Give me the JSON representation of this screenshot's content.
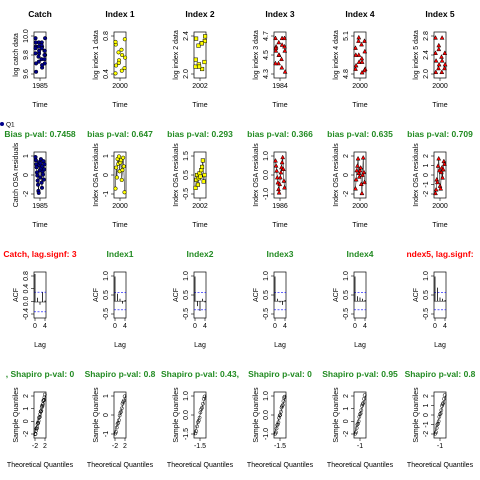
{
  "legend": {
    "label": "Q1"
  },
  "colors": {
    "catch": "#00008b",
    "index1": "#ffff00",
    "index2": "#ffff00",
    "index3": "#ff0000",
    "index4": "#ff0000",
    "index5": "#ff0000",
    "title_green": "#228b22",
    "title_red": "#ff0000",
    "acf_line": "#0000ff"
  },
  "row1": [
    {
      "title": "Catch",
      "ylabel": "log catch data",
      "xlabel": "Time",
      "yticks": [
        "9.6",
        "9.8",
        "10.0"
      ],
      "xticks": [
        "1985"
      ],
      "marker": "circle",
      "color_key": "catch"
    },
    {
      "title": "Index 1",
      "ylabel": "log index 1 data",
      "xlabel": "Time",
      "yticks": [
        "0.4",
        "0.8"
      ],
      "xticks": [
        "2000"
      ],
      "marker": "circle",
      "color_key": "index1"
    },
    {
      "title": "Index 2",
      "ylabel": "log index 2 data",
      "xlabel": "Time",
      "yticks": [
        "2.0",
        "2.4"
      ],
      "xticks": [
        "2002"
      ],
      "marker": "square",
      "color_key": "index2"
    },
    {
      "title": "Index 3",
      "ylabel": "log index 3 data",
      "xlabel": "Time",
      "yticks": [
        "4.3",
        "4.5",
        "4.7"
      ],
      "xticks": [
        "1984"
      ],
      "marker": "triangle",
      "color_key": "index3"
    },
    {
      "title": "Index 4",
      "ylabel": "log index 4 data",
      "xlabel": "Time",
      "yticks": [
        "4.8",
        "5.1"
      ],
      "xticks": [
        "2000"
      ],
      "marker": "triangle",
      "color_key": "index4"
    },
    {
      "title": "Index 5",
      "ylabel": "log index 5 data",
      "xlabel": "Time",
      "yticks": [
        "2.0",
        "2.4",
        "2.8"
      ],
      "xticks": [
        "2000"
      ],
      "marker": "triangle",
      "color_key": "index5"
    }
  ],
  "row2": [
    {
      "title": "Bias p-val: 0.7458",
      "ylabel": "Catch OSA residuals",
      "xlabel": "Time",
      "yticks": [
        "-2",
        "0",
        "1"
      ],
      "xticks": [
        "1985"
      ],
      "marker": "circle",
      "color_key": "catch"
    },
    {
      "title": "bias p-val: 0.647",
      "ylabel": "Index OSA residuals",
      "xlabel": "Time",
      "yticks": [
        "-1",
        "0",
        "1"
      ],
      "xticks": [
        "2000"
      ],
      "marker": "circle",
      "color_key": "index1"
    },
    {
      "title": "bias p-val: 0.293",
      "ylabel": "Index OSA residuals",
      "xlabel": "Time",
      "yticks": [
        "-0.5",
        "0.5",
        "1.5"
      ],
      "xticks": [
        "2002"
      ],
      "marker": "square",
      "color_key": "index2"
    },
    {
      "title": "bias p-val: 0.366",
      "ylabel": "Index OSA residuals",
      "xlabel": "Time",
      "yticks": [
        "-1.0",
        "0.0",
        "1.0"
      ],
      "xticks": [
        "1986"
      ],
      "marker": "triangle",
      "color_key": "index3"
    },
    {
      "title": "bias p-val: 0.635",
      "ylabel": "Index OSA residuals",
      "xlabel": "Time",
      "yticks": [
        "-2",
        "0",
        "2"
      ],
      "xticks": [
        "2000"
      ],
      "marker": "triangle",
      "color_key": "index4"
    },
    {
      "title": "bias p-val: 0.709",
      "ylabel": "Index OSA residuals",
      "xlabel": "Time",
      "yticks": [
        "-2",
        "-1",
        "0",
        "1",
        "2"
      ],
      "xticks": [
        "2000"
      ],
      "marker": "triangle",
      "color_key": "index5"
    }
  ],
  "row3": [
    {
      "title": "Catch, lag.signf: 3",
      "title_color": "title_red",
      "ylabel": "ACF",
      "xlabel": "Lag",
      "yticks": [
        "-0.4",
        "0.0",
        "0.4",
        "0.8"
      ],
      "xticks": [
        "0",
        "4"
      ],
      "acf": [
        1.0,
        0.15,
        -0.1,
        0.35,
        0.05
      ]
    },
    {
      "title": "Index1",
      "title_color": "title_green",
      "ylabel": "ACF",
      "xlabel": "Lag",
      "yticks": [
        "-0.5",
        "0.5",
        "1.0"
      ],
      "xticks": [
        "0",
        "4"
      ],
      "acf": [
        1.0,
        0.3,
        0.1,
        -0.1,
        0.05
      ]
    },
    {
      "title": "Index2",
      "title_color": "title_green",
      "ylabel": "ACF",
      "xlabel": "Lag",
      "yticks": [
        "-0.5",
        "0.5",
        "1.0"
      ],
      "xticks": [
        "0",
        "4"
      ],
      "acf": [
        1.0,
        -0.2,
        -0.4,
        0.1,
        -0.05
      ]
    },
    {
      "title": "Index3",
      "title_color": "title_green",
      "ylabel": "ACF",
      "xlabel": "Lag",
      "yticks": [
        "-0.5",
        "0.5",
        "1.0"
      ],
      "xticks": [
        "0",
        "4"
      ],
      "acf": [
        1.0,
        0.1,
        -0.05,
        -0.15,
        0.05
      ]
    },
    {
      "title": "Index4",
      "title_color": "title_green",
      "ylabel": "ACF",
      "xlabel": "Lag",
      "yticks": [
        "-0.5",
        "0.5",
        "1.0"
      ],
      "xticks": [
        "0",
        "4"
      ],
      "acf": [
        1.0,
        0.2,
        0.15,
        0.1,
        0.05
      ]
    },
    {
      "title": "ndex5, lag.signf: ",
      "title_color": "title_red",
      "ylabel": "ACF",
      "xlabel": "Lag",
      "yticks": [
        "-0.5",
        "0.5",
        "1.0"
      ],
      "xticks": [
        "0",
        "4"
      ],
      "acf": [
        1.0,
        0.55,
        0.15,
        0.1,
        0.05
      ]
    }
  ],
  "row4": [
    {
      "title": ", Shapiro p-val: 0",
      "ylabel": "Sample Quantiles",
      "xlabel": "Theoretical Quantiles",
      "yticks": [
        "-2",
        "0",
        "1",
        "2"
      ],
      "xticks": [
        "-2",
        "2"
      ],
      "ylim": [
        -2.5,
        1.5
      ]
    },
    {
      "title": "Shapiro p-val: 0.8",
      "ylabel": "Sample Quantiles",
      "xlabel": "Theoretical Quantiles",
      "yticks": [
        "-1",
        "0",
        "1"
      ],
      "xticks": [
        "-2",
        "2"
      ],
      "ylim": [
        -1.6,
        1.8
      ]
    },
    {
      "title": "Shapiro p-val: 0.43,",
      "ylabel": "Sample Quantiles",
      "xlabel": "Theoretical Quantiles",
      "yticks": [
        "-1.5",
        "0.0",
        "1.0"
      ],
      "xticks": [
        "-1.5"
      ],
      "ylim": [
        -1.6,
        1.6
      ]
    },
    {
      "title": "Shapiro p-val: 0",
      "ylabel": "Sample Quantiles",
      "xlabel": "Theoretical Quantiles",
      "yticks": [
        "-1.0",
        "0.0",
        "1.0"
      ],
      "xticks": [
        "-1.5"
      ],
      "ylim": [
        -1.4,
        1.2
      ]
    },
    {
      "title": "Shapiro p-val: 0.95",
      "ylabel": "Sample Quantiles",
      "xlabel": "Theoretical Quantiles",
      "yticks": [
        "-2",
        "0",
        "1",
        "2"
      ],
      "xticks": [
        "-1"
      ],
      "ylim": [
        -2.3,
        2.3
      ]
    },
    {
      "title": "Shapiro p-val: 0.8",
      "ylabel": "Sample Quantiles",
      "xlabel": "Theoretical Quantiles",
      "yticks": [
        "-2",
        "-1",
        "0",
        "1",
        "2"
      ],
      "xticks": [
        "-1"
      ],
      "ylim": [
        -2.3,
        2.3
      ]
    }
  ],
  "chart_data": [
    {
      "type": "scatter",
      "title": "Catch",
      "xlabel": "Time",
      "ylabel": "log catch data",
      "ylim": [
        9.55,
        10.05
      ],
      "y": [
        10.0,
        9.95,
        9.9,
        9.85,
        9.9,
        9.82,
        9.75,
        9.85,
        9.7,
        9.9,
        9.95,
        9.8,
        9.88,
        9.72,
        9.65,
        9.8,
        9.95,
        9.85,
        9.92,
        9.7,
        9.6,
        9.78,
        9.88,
        10.0,
        9.82,
        9.9,
        9.68,
        9.75
      ]
    },
    {
      "type": "scatter",
      "title": "Index 1",
      "xlabel": "Time",
      "ylabel": "log index 1 data",
      "ylim": [
        0.3,
        1.1
      ],
      "y": [
        0.35,
        0.55,
        0.7,
        0.45,
        0.9,
        0.6,
        0.8,
        1.0,
        0.5,
        0.75,
        0.4,
        0.65,
        0.95,
        0.55
      ]
    },
    {
      "type": "scatter",
      "title": "Index 2",
      "xlabel": "Time",
      "ylabel": "log index 2 data",
      "ylim": [
        1.8,
        2.7
      ],
      "y": [
        2.0,
        2.05,
        1.95,
        2.1,
        2.15,
        2.0,
        2.5,
        2.55,
        2.6,
        2.45,
        2.5,
        2.65
      ]
    },
    {
      "type": "scatter",
      "title": "Index 3",
      "xlabel": "Time",
      "ylabel": "log index 3 data",
      "ylim": [
        4.25,
        4.75
      ],
      "y": [
        4.7,
        4.65,
        4.7,
        4.6,
        4.55,
        4.5,
        4.45,
        4.55,
        4.6,
        4.4,
        4.35,
        4.3,
        4.4,
        4.5,
        4.62,
        4.7,
        4.58
      ]
    },
    {
      "type": "scatter",
      "title": "Index 4",
      "xlabel": "Time",
      "ylabel": "log index 4 data",
      "ylim": [
        4.7,
        5.3
      ],
      "y": [
        4.8,
        5.25,
        4.75,
        5.2,
        5.0,
        4.9,
        5.15,
        5.05,
        4.85,
        5.2,
        4.95,
        4.8,
        5.1,
        5.0,
        4.9,
        4.78
      ]
    },
    {
      "type": "scatter",
      "title": "Index 5",
      "xlabel": "Time",
      "ylabel": "log index 5 data",
      "ylim": [
        1.9,
        3.0
      ],
      "y": [
        2.9,
        2.6,
        2.3,
        2.1,
        2.0,
        2.2,
        2.4,
        2.5,
        2.3,
        2.1,
        2.0,
        2.2,
        2.5,
        2.7,
        2.9
      ]
    },
    {
      "type": "scatter",
      "title": "Bias p-val: 0.7458",
      "xlabel": "Time",
      "ylabel": "Catch OSA residuals",
      "ylim": [
        -2.3,
        1.8
      ],
      "y": [
        1.5,
        1.2,
        0.8,
        0.5,
        0.0,
        -0.3,
        -0.8,
        -1.2,
        -1.8,
        -2.0,
        1.0,
        0.7,
        0.2,
        -0.5,
        0.9,
        1.3,
        0.4,
        -1.0,
        -1.5,
        0.6,
        0.1,
        -0.2,
        1.1,
        -0.7,
        0.3,
        0.8
      ]
    },
    {
      "type": "scatter",
      "title": "bias p-val: 0.647",
      "xlabel": "Time",
      "ylabel": "Index OSA residuals",
      "ylim": [
        -1.8,
        1.6
      ],
      "y": [
        -1.2,
        0.5,
        -0.3,
        1.2,
        0.8,
        1.4,
        0.2,
        0.9,
        1.1,
        -0.5,
        0.3,
        1.3,
        0.6,
        -1.5
      ]
    },
    {
      "type": "scatter",
      "title": "bias p-val: 0.293",
      "xlabel": "Time",
      "ylabel": "Index OSA residuals",
      "ylim": [
        -0.8,
        1.8
      ],
      "y": [
        -0.3,
        0.2,
        0.5,
        -0.1,
        0.3,
        0.6,
        0.4,
        0.8,
        1.0,
        1.4,
        0.1,
        0.5
      ]
    },
    {
      "type": "scatter",
      "title": "bias p-val: 0.366",
      "xlabel": "Time",
      "ylabel": "Index OSA residuals",
      "ylim": [
        -1.3,
        1.2
      ],
      "y": [
        0.8,
        0.5,
        0.2,
        -0.2,
        -0.5,
        -0.9,
        -1.1,
        -0.6,
        -0.2,
        0.1,
        0.4,
        0.7,
        1.0,
        0.3,
        -0.4,
        -0.8
      ]
    },
    {
      "type": "scatter",
      "title": "bias p-val: 0.635",
      "xlabel": "Time",
      "ylabel": "Index OSA residuals",
      "ylim": [
        -2.3,
        2.3
      ],
      "y": [
        -1.5,
        -0.5,
        0.5,
        1.0,
        1.8,
        0.2,
        -0.2,
        0.5,
        0.8,
        -1.0,
        -2.0,
        0.0,
        1.9,
        0.3,
        -0.8
      ]
    },
    {
      "type": "scatter",
      "title": "bias p-val: 0.709",
      "xlabel": "Time",
      "ylabel": "Index OSA residuals",
      "ylim": [
        -2.3,
        2.3
      ],
      "y": [
        -2.0,
        -1.6,
        -0.5,
        -0.8,
        1.0,
        1.8,
        0.5,
        -1.2,
        -1.5,
        0.3,
        0.8,
        -0.3,
        0.6,
        1.5,
        1.2
      ]
    },
    {
      "type": "bar",
      "title": "Catch, lag.signf: 3",
      "xlabel": "Lag",
      "ylabel": "ACF",
      "categories": [
        0,
        1,
        2,
        3,
        4
      ],
      "values": [
        1.0,
        0.15,
        -0.1,
        0.35,
        0.05
      ],
      "ylim": [
        -0.5,
        1.0
      ]
    },
    {
      "type": "bar",
      "title": "Index1",
      "xlabel": "Lag",
      "ylabel": "ACF",
      "categories": [
        0,
        1,
        2,
        3,
        4
      ],
      "values": [
        1.0,
        0.3,
        0.1,
        -0.1,
        0.05
      ],
      "ylim": [
        -0.6,
        1.1
      ]
    },
    {
      "type": "bar",
      "title": "Index2",
      "xlabel": "Lag",
      "ylabel": "ACF",
      "categories": [
        0,
        1,
        2,
        3,
        4
      ],
      "values": [
        1.0,
        -0.2,
        -0.4,
        0.1,
        -0.05
      ],
      "ylim": [
        -0.6,
        1.1
      ]
    },
    {
      "type": "bar",
      "title": "Index3",
      "xlabel": "Lag",
      "ylabel": "ACF",
      "categories": [
        0,
        1,
        2,
        3,
        4
      ],
      "values": [
        1.0,
        0.1,
        -0.05,
        -0.15,
        0.05
      ],
      "ylim": [
        -0.6,
        1.1
      ]
    },
    {
      "type": "bar",
      "title": "Index4",
      "xlabel": "Lag",
      "ylabel": "ACF",
      "categories": [
        0,
        1,
        2,
        3,
        4
      ],
      "values": [
        1.0,
        0.2,
        0.15,
        0.1,
        0.05
      ],
      "ylim": [
        -0.6,
        1.1
      ]
    },
    {
      "type": "bar",
      "title": "ndex5, lag.signf: ",
      "xlabel": "Lag",
      "ylabel": "ACF",
      "categories": [
        0,
        1,
        2,
        3,
        4
      ],
      "values": [
        1.0,
        0.55,
        0.15,
        0.1,
        0.05
      ],
      "ylim": [
        -0.6,
        1.1
      ]
    },
    {
      "type": "scatter",
      "title": ", Shapiro p-val: 0",
      "xlabel": "Theoretical Quantiles",
      "ylabel": "Sample Quantiles",
      "n": 26
    },
    {
      "type": "scatter",
      "title": "Shapiro p-val: 0.8",
      "xlabel": "Theoretical Quantiles",
      "ylabel": "Sample Quantiles",
      "n": 14
    },
    {
      "type": "scatter",
      "title": "Shapiro p-val: 0.43,",
      "xlabel": "Theoretical Quantiles",
      "ylabel": "Sample Quantiles",
      "n": 12
    },
    {
      "type": "scatter",
      "title": "Shapiro p-val: 0",
      "xlabel": "Theoretical Quantiles",
      "ylabel": "Sample Quantiles",
      "n": 16
    },
    {
      "type": "scatter",
      "title": "Shapiro p-val: 0.95",
      "xlabel": "Theoretical Quantiles",
      "ylabel": "Sample Quantiles",
      "n": 15
    },
    {
      "type": "scatter",
      "title": "Shapiro p-val: 0.8",
      "xlabel": "Theoretical Quantiles",
      "ylabel": "Sample Quantiles",
      "n": 15
    }
  ]
}
